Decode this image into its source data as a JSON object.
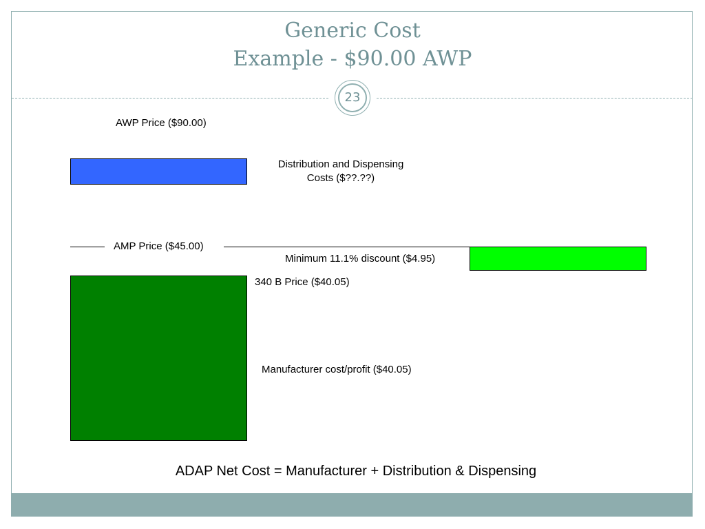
{
  "slide": {
    "title_line1": "Generic Cost",
    "title_line2": "Example - $90.00 AWP",
    "page_number": "23"
  },
  "diagram": {
    "awp_label": "AWP Price ($90.00)",
    "distribution_label_line1": "Distribution and Dispensing",
    "distribution_label_line2": "Costs ($??.??)",
    "amp_label": "AMP Price ($45.00)",
    "discount_label": "Minimum 11.1% discount ($4.95)",
    "price_340b_label": "340 B Price ($40.05)",
    "manufacturer_label": "Manufacturer cost/profit ($40.05)",
    "colors": {
      "distribution_box": "#3366ff",
      "discount_box": "#00ff00",
      "manufacturer_box": "#008000",
      "theme_accent": "#8eadae",
      "title_text": "#6f9195"
    }
  },
  "footer": {
    "equation": "ADAP Net Cost = Manufacturer + Distribution & Dispensing"
  }
}
